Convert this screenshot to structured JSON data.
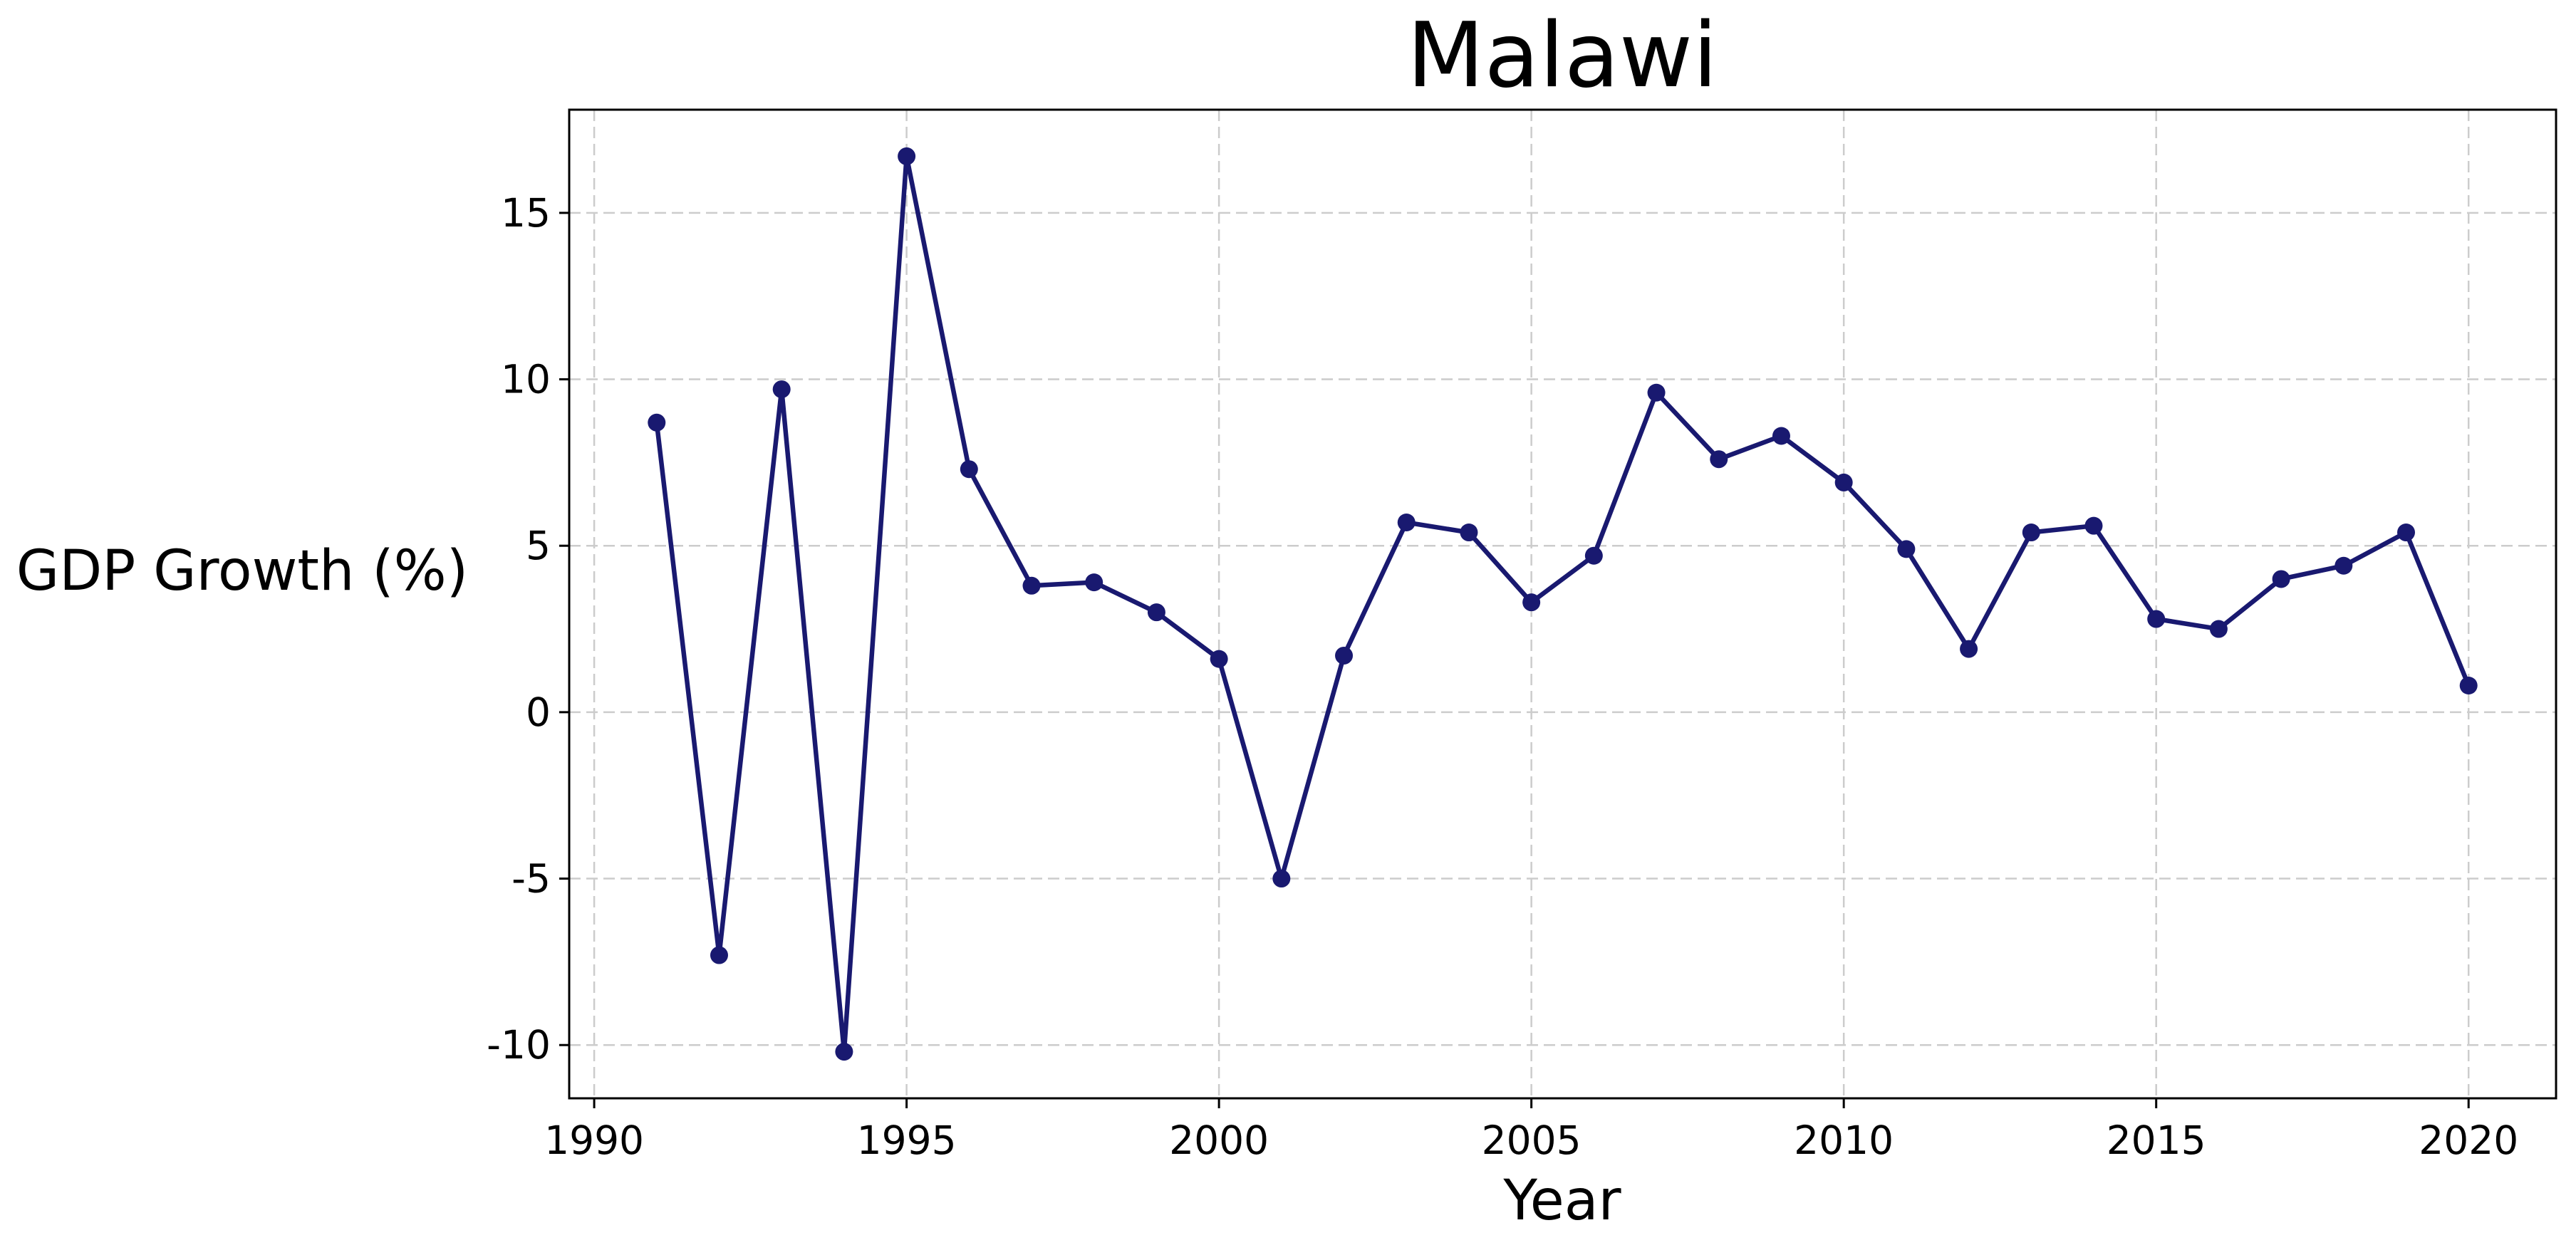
{
  "chart_data": {
    "type": "line",
    "title": "Malawi",
    "xlabel": "Year",
    "ylabel": "GDP Growth (%)",
    "xlim": [
      1989.6,
      2021.4
    ],
    "ylim": [
      -11.6,
      18.1
    ],
    "x_ticks": [
      1990,
      1995,
      2000,
      2005,
      2010,
      2015,
      2020
    ],
    "x_tick_labels": [
      "1990",
      "1995",
      "2000",
      "2005",
      "2010",
      "2015",
      "2020"
    ],
    "y_ticks": [
      -10,
      -5,
      0,
      5,
      10,
      15
    ],
    "y_tick_labels": [
      "-10",
      "-5",
      "0",
      "5",
      "10",
      "15"
    ],
    "grid": true,
    "series": [
      {
        "color": "#191970",
        "marker": "circle",
        "x": [
          1991,
          1992,
          1993,
          1994,
          1995,
          1996,
          1997,
          1998,
          1999,
          2000,
          2001,
          2002,
          2003,
          2004,
          2005,
          2006,
          2007,
          2008,
          2009,
          2010,
          2011,
          2012,
          2013,
          2014,
          2015,
          2016,
          2017,
          2018,
          2019,
          2020
        ],
        "y": [
          8.7,
          -7.3,
          9.7,
          -10.2,
          16.7,
          7.3,
          3.8,
          3.9,
          3.0,
          1.6,
          -5.0,
          1.7,
          5.7,
          5.4,
          3.3,
          4.7,
          9.6,
          7.6,
          8.3,
          6.9,
          4.9,
          1.9,
          5.4,
          5.6,
          2.8,
          2.5,
          4.0,
          4.4,
          5.4,
          0.8
        ]
      }
    ]
  }
}
